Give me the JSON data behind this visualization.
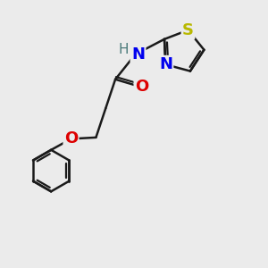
{
  "background_color": "#ebebeb",
  "bond_color": "#1a1a1a",
  "bond_width": 1.8,
  "atoms": {
    "S": {
      "color": "#b8b800",
      "fontsize": 13,
      "fontweight": "bold"
    },
    "N": {
      "color": "#0000ee",
      "fontsize": 13,
      "fontweight": "bold"
    },
    "O": {
      "color": "#dd0000",
      "fontsize": 13,
      "fontweight": "bold"
    }
  },
  "figsize": [
    3.0,
    3.0
  ],
  "dpi": 100,
  "xlim": [
    0.0,
    8.5
  ],
  "ylim": [
    0.0,
    9.5
  ]
}
